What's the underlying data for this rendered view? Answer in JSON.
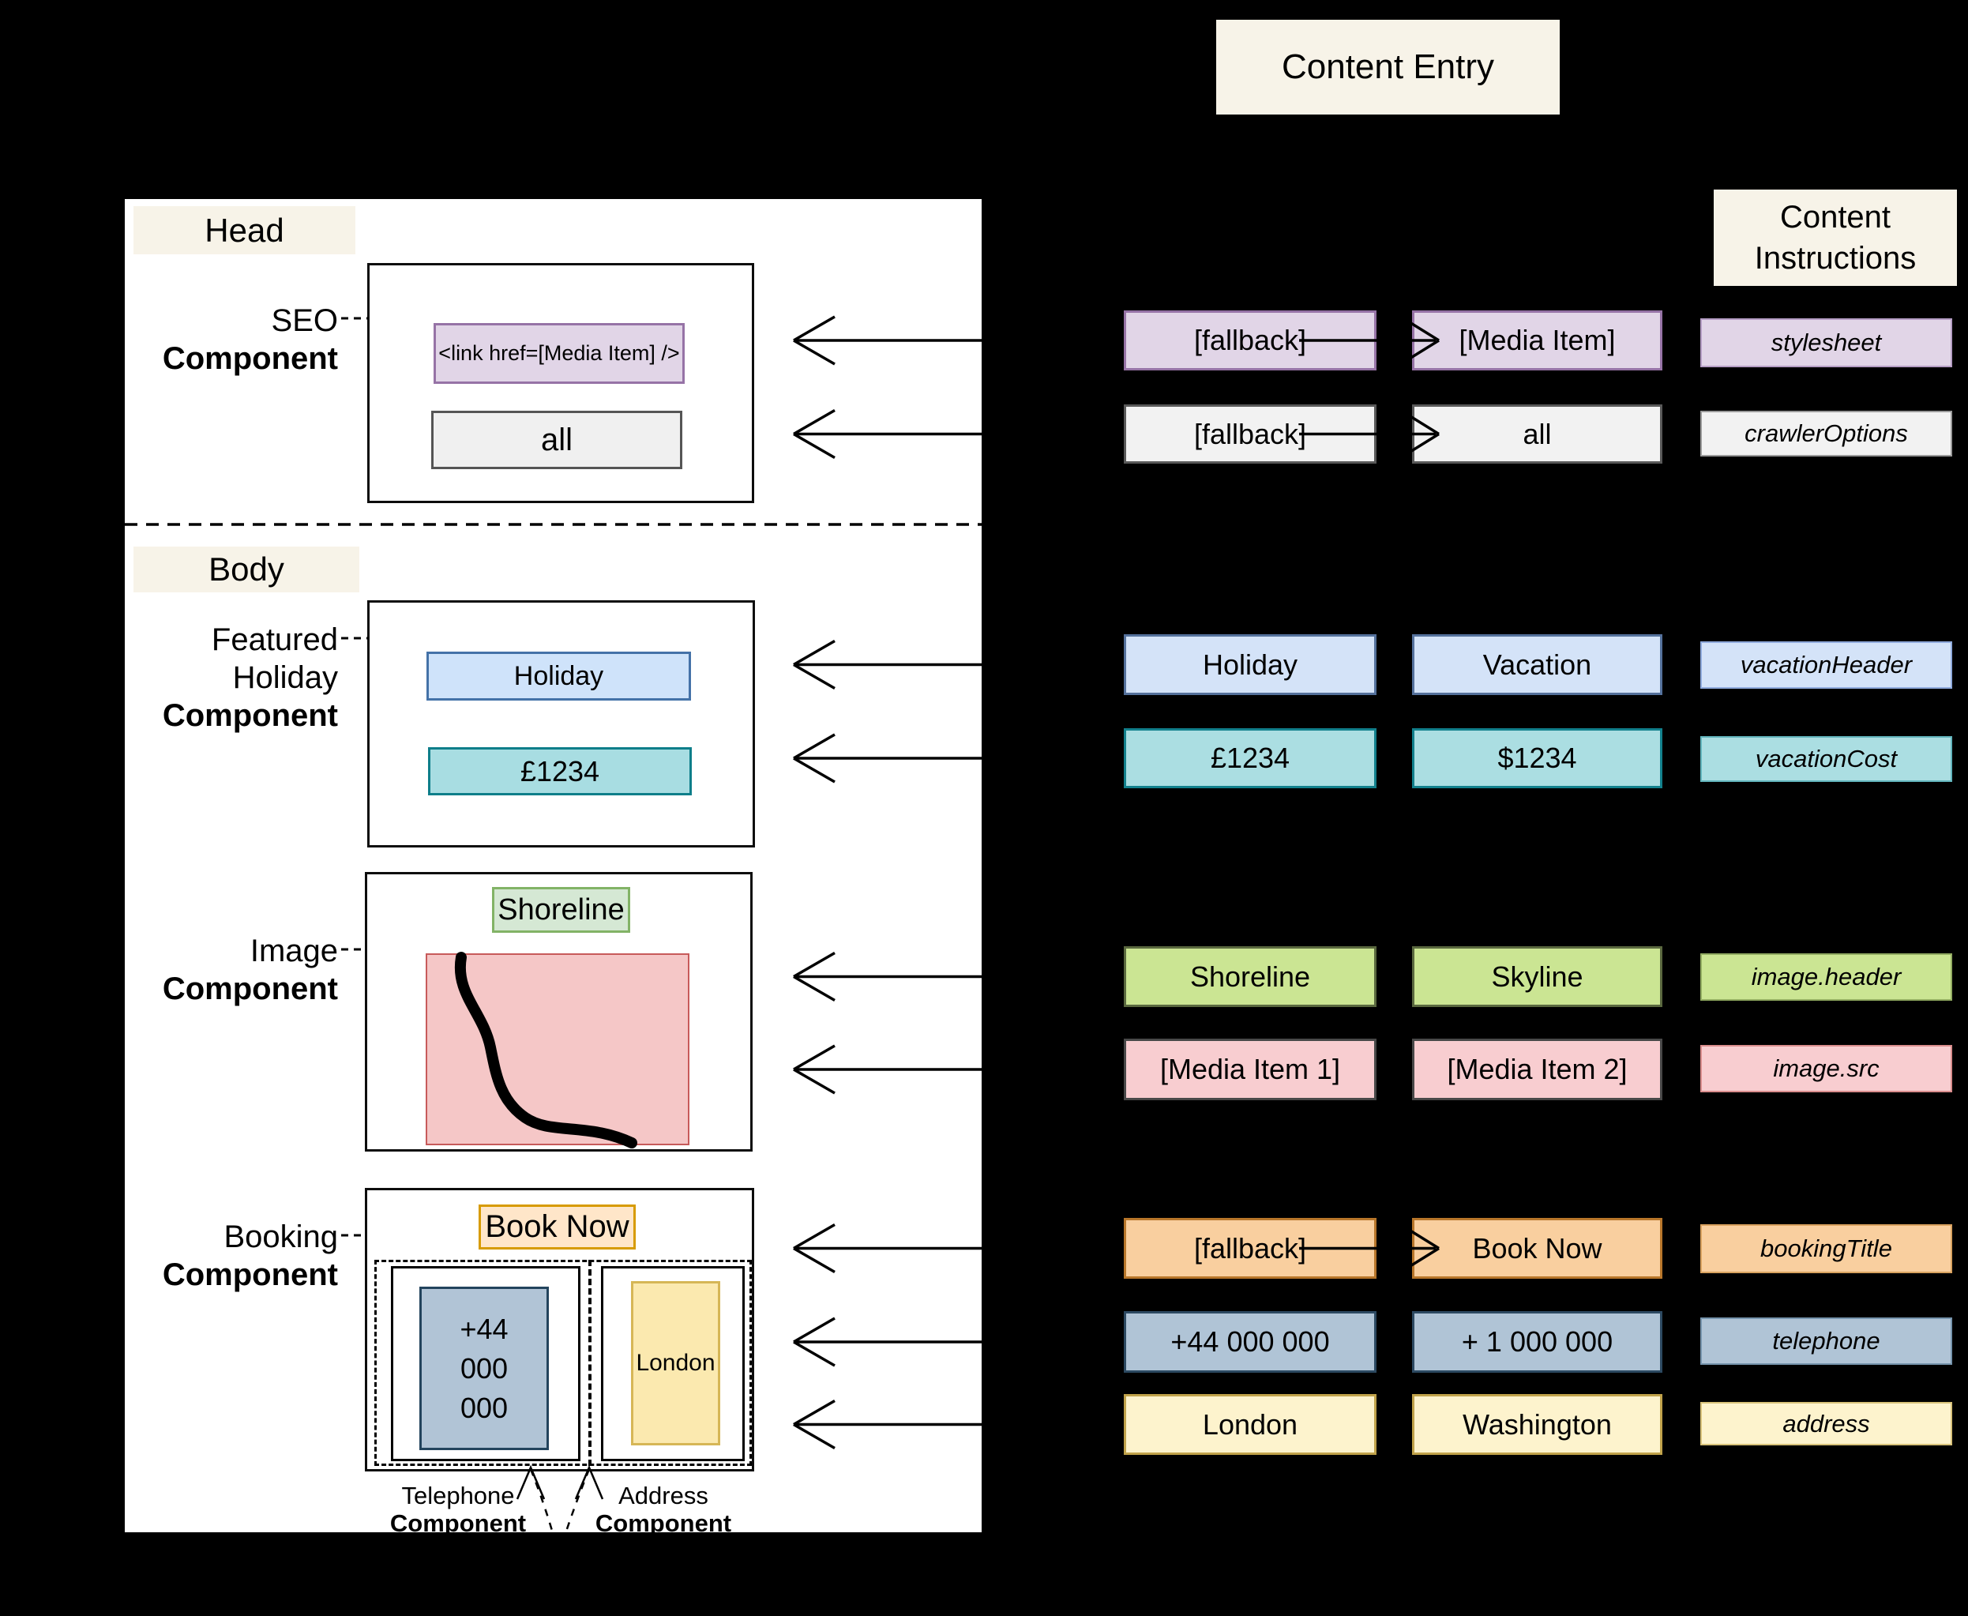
{
  "headers": {
    "content_entry": "Content Entry",
    "content_instructions_line1": "Content",
    "content_instructions_line2": "Instructions"
  },
  "layout_panel": {
    "head_label": "Head",
    "body_label": "Body",
    "seo": {
      "label1": "SEO",
      "label2": "Component",
      "link_box": "<link href=[Media Item] />",
      "all_box": "all"
    },
    "featured": {
      "label1": "Featured",
      "label2": "Holiday",
      "label3": "Component",
      "header_box": "Holiday",
      "cost_box": "£1234"
    },
    "image": {
      "label1": "Image",
      "label2": "Component",
      "header_box": "Shoreline"
    },
    "booking": {
      "label1": "Booking",
      "label2": "Component",
      "title_box": "Book Now",
      "telephone_line1": "+44",
      "telephone_line2": "000",
      "telephone_line3": "000",
      "address_box": "London",
      "telephone_label1": "Telephone",
      "telephone_label2": "Component",
      "address_label1": "Address",
      "address_label2": "Component"
    }
  },
  "content_rows": [
    {
      "id": "stylesheet",
      "col1": "[fallback]",
      "col2": "[Media Item]",
      "instruction": "stylesheet",
      "color": "purple",
      "connector": true
    },
    {
      "id": "crawlerOptions",
      "col1": "[fallback]",
      "col2": "all",
      "instruction": "crawlerOptions",
      "color": "gray",
      "connector": true
    },
    {
      "id": "vacationHeader",
      "col1": "Holiday",
      "col2": "Vacation",
      "instruction": "vacationHeader",
      "color": "blue",
      "connector": false
    },
    {
      "id": "vacationCost",
      "col1": "£1234",
      "col2": "$1234",
      "instruction": "vacationCost",
      "color": "teal",
      "connector": false
    },
    {
      "id": "image.header",
      "col1": "Shoreline",
      "col2": "Skyline",
      "instruction": "image.header",
      "color": "green",
      "connector": false
    },
    {
      "id": "image.src",
      "col1": "[Media Item 1]",
      "col2": "[Media Item 2]",
      "instruction": "image.src",
      "color": "pink",
      "connector": false
    },
    {
      "id": "bookingTitle",
      "col1": "[fallback]",
      "col2": "Book Now",
      "instruction": "bookingTitle",
      "color": "orange",
      "connector": true
    },
    {
      "id": "telephone",
      "col1": "+44 000 000",
      "col2": "+ 1 000 000",
      "instruction": "telephone",
      "color": "bluegray",
      "connector": false
    },
    {
      "id": "address",
      "col1": "London",
      "col2": "Washington",
      "instruction": "address",
      "color": "yellow",
      "connector": false
    }
  ],
  "colors": {
    "background": "#000000",
    "panel": "#ffffff",
    "label_chip": "#f7f3e8",
    "purple": {
      "fill": "#e1d5e7",
      "border": "#9673a6",
      "iborder": "#b59dc4"
    },
    "gray": {
      "fill": "#f2f2f2",
      "border": "#595959",
      "iborder": "#9a9a9a"
    },
    "blue": {
      "fill": "#d4e3f8",
      "border": "#54719c",
      "iborder": "#8faadc"
    },
    "teal": {
      "fill": "#abdee2",
      "border": "#12808c",
      "iborder": "#62b5bd"
    },
    "green": {
      "fill": "#cbe593",
      "border": "#5a683f",
      "iborder": "#93ad62"
    },
    "pink": {
      "fill": "#f8cdd0",
      "border": "#484848",
      "iborder": "#d98c8c"
    },
    "orange": {
      "fill": "#f9cf9f",
      "border": "#b8762a",
      "iborder": "#d9a25f"
    },
    "bluegray": {
      "fill": "#b0c4d6",
      "border": "#2c4961",
      "iborder": "#7694ad"
    },
    "yellow": {
      "fill": "#fdf3cd",
      "border": "#c0a24a",
      "iborder": "#d8c27a"
    },
    "inpanel": {
      "link": {
        "fill": "#e1d5e7",
        "border": "#9673a6"
      },
      "all": {
        "fill": "#f0f0f0",
        "border": "#555555"
      },
      "holiday": {
        "fill": "#cfe3fa",
        "border": "#4472a8"
      },
      "cost": {
        "fill": "#a8dde2",
        "border": "#0e7e8a"
      },
      "shoreline": {
        "fill": "#d5e8d4",
        "border": "#82b366"
      },
      "imagebox": {
        "fill": "#f5c7c7",
        "border": "#c75a5a"
      },
      "booknow": {
        "fill": "#ffe6c9",
        "border": "#d79b00"
      },
      "telephone": {
        "fill": "#b1c4d6",
        "border": "#23445d"
      },
      "address": {
        "fill": "#fbe9af",
        "border": "#d6b656"
      }
    }
  }
}
